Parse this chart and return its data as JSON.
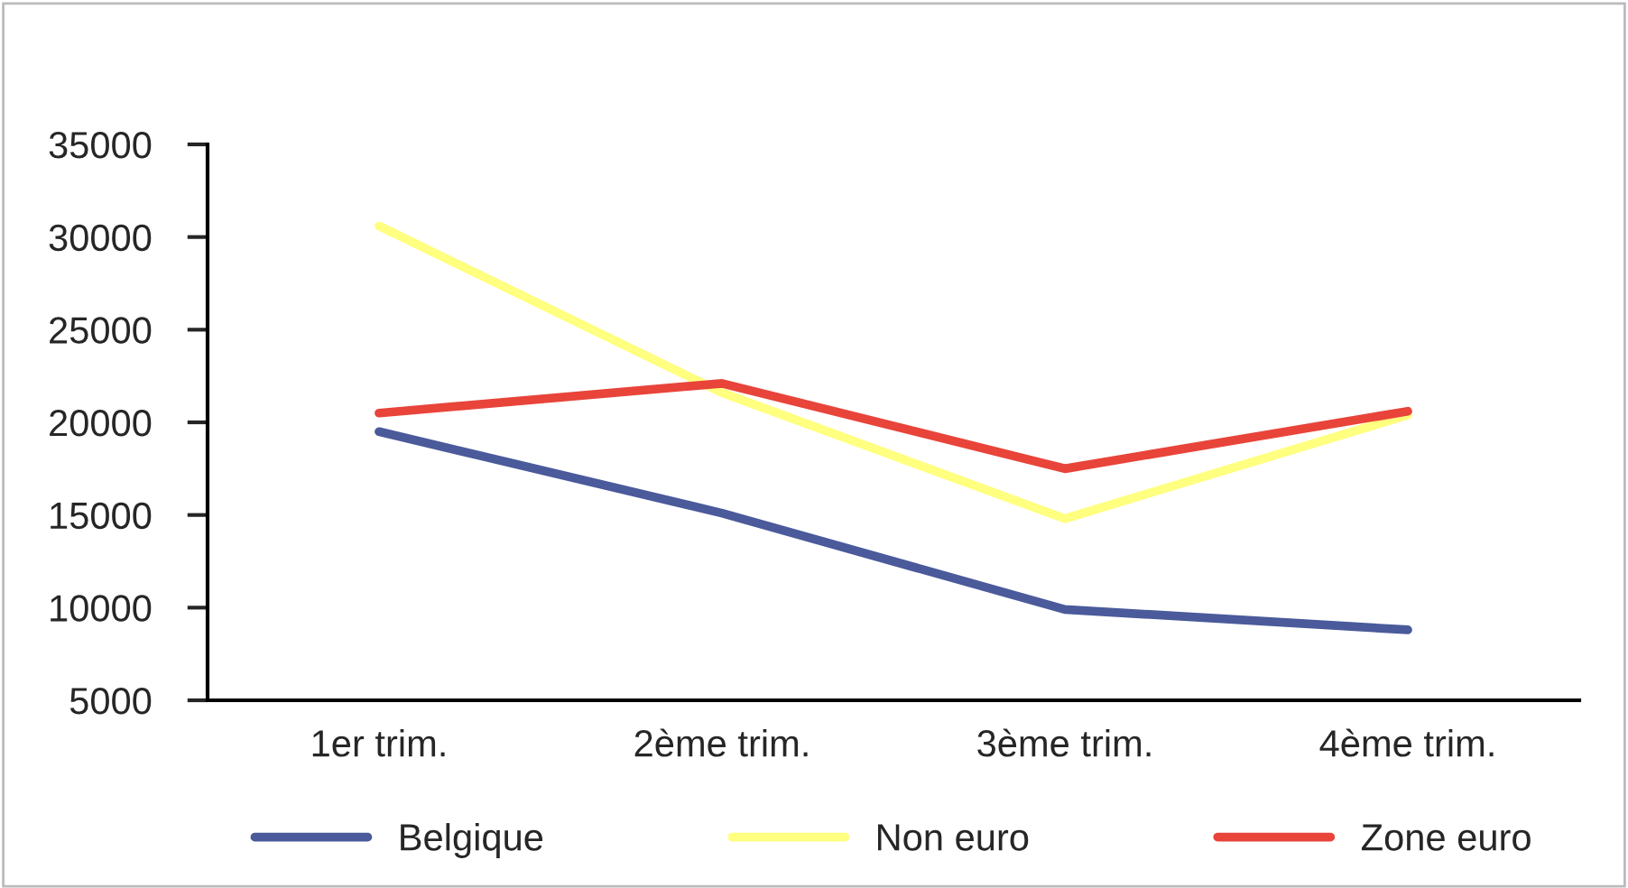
{
  "chart_data": {
    "type": "line",
    "categories": [
      "1er trim.",
      "2ème trim.",
      "3ème trim.",
      "4ème trim."
    ],
    "series": [
      {
        "name": "Belgique",
        "color": "#4a5a9a",
        "values": [
          19500,
          15100,
          9900,
          8800
        ]
      },
      {
        "name": "Non euro",
        "color": "#ffff80",
        "values": [
          30600,
          21600,
          14800,
          20400
        ]
      },
      {
        "name": "Zone euro",
        "color": "#e8443a",
        "values": [
          20500,
          22100,
          17500,
          20600
        ]
      }
    ],
    "ylim": [
      5000,
      35000
    ],
    "yticks": [
      5000,
      10000,
      15000,
      20000,
      25000,
      30000,
      35000
    ],
    "grid": false,
    "legend": "bottom",
    "marker": "none",
    "line_style": "solid"
  }
}
